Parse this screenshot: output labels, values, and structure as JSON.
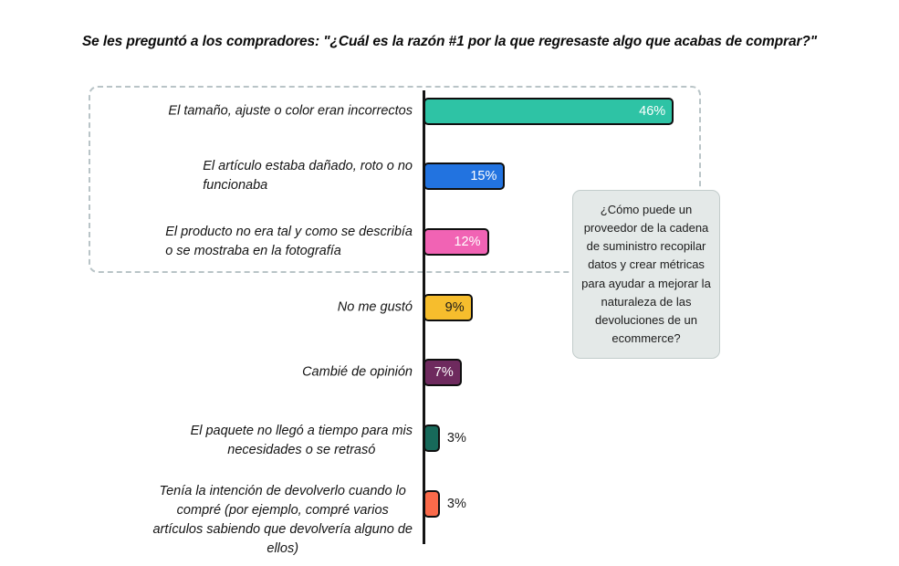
{
  "title": "Se les preguntó a los compradores: \"¿Cuál es la razón #1 por la que regresaste algo que acabas de comprar?\"",
  "callout": {
    "text": "¿Cómo puede un proveedor de la cadena de suministro recopilar datos y crear métricas para ayudar a mejorar la naturaleza de las devoluciones de un ecommerce?",
    "background": "#e4e9e8",
    "border_color": "#c2cccb"
  },
  "highlight_box": {
    "style": "dashed",
    "border_color": "#b9c4c7",
    "encloses": "top 3 reasons"
  },
  "chart_data": {
    "type": "bar",
    "orientation": "horizontal",
    "title": "Se les preguntó a los compradores: \"¿Cuál es la razón #1 por la que regresaste algo que acabas de comprar?\"",
    "categories": [
      "El tamaño, ajuste o color eran incorrectos",
      "El artículo estaba dañado, roto o no funcionaba",
      "El producto no era tal y como se describía o se mostraba en la fotografía",
      "No me gustó",
      "Cambié de opinión",
      "El paquete no llegó a tiempo para mis necesidades o se retrasó",
      "Tenía la intención de devolverlo cuando lo compré (por ejemplo, compré varios artículos sabiendo que devolvería alguno de ellos)"
    ],
    "values": [
      46,
      15,
      12,
      9,
      7,
      3,
      3
    ],
    "value_labels": [
      "46%",
      "15%",
      "12%",
      "9%",
      "7%",
      "3%",
      "3%"
    ],
    "xlim": [
      0,
      50
    ],
    "grid": false,
    "legend": false,
    "value_axis_visible": false,
    "bars": [
      {
        "label_display": "El tamaño, ajuste o color eran incorrectos",
        "value": 46,
        "value_label": "46%",
        "color": "#2ec3a5",
        "value_color": "#ffffff",
        "value_placement": "inside",
        "label_align": "right"
      },
      {
        "label_display": "El artículo estaba dañado, roto o no\nfuncionaba",
        "value": 15,
        "value_label": "15%",
        "color": "#2273e0",
        "value_color": "#ffffff",
        "value_placement": "inside",
        "label_align": "left"
      },
      {
        "label_display": "El producto no era tal y como se describía\no se mostraba en la fotografía",
        "value": 12,
        "value_label": "12%",
        "color": "#f163b4",
        "value_color": "#ffffff",
        "value_placement": "inside",
        "label_align": "left"
      },
      {
        "label_display": "No me gustó",
        "value": 9,
        "value_label": "9%",
        "color": "#f6bd2d",
        "value_color": "#1a1a1a",
        "value_placement": "inside",
        "label_align": "right"
      },
      {
        "label_display": "Cambié de opinión",
        "value": 7,
        "value_label": "7%",
        "color": "#6e2a5e",
        "value_color": "#ffffff",
        "value_placement": "inside",
        "label_align": "right"
      },
      {
        "label_display": "El paquete no llegó a tiempo para mis\nnecesidades o se retrasó",
        "value": 3,
        "value_label": "3%",
        "color": "#17695a",
        "value_color": "#1a1a1a",
        "value_placement": "outside",
        "label_align": "center"
      },
      {
        "label_display": "Tenía la intención de devolverlo cuando lo\ncompré (por ejemplo, compré varios\nartículos sabiendo que devolvería alguno de\nellos)",
        "value": 3,
        "value_label": "3%",
        "color": "#fa6a4a",
        "value_color": "#1a1a1a",
        "value_placement": "outside",
        "label_align": "center"
      }
    ]
  }
}
